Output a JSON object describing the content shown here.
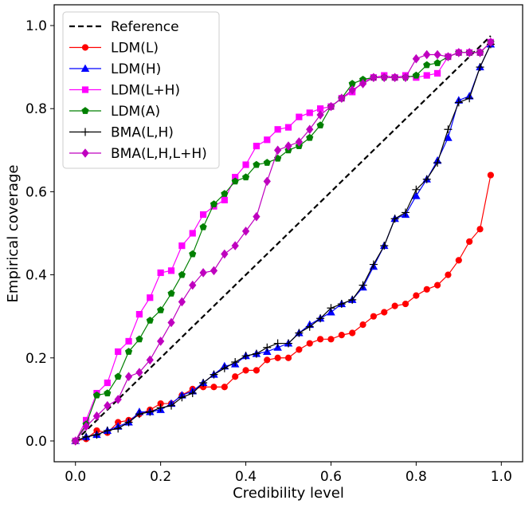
{
  "chart_data": {
    "type": "line",
    "xlabel": "Credibility level",
    "ylabel": "Empirical coverage",
    "xlim": [
      -0.05,
      1.05
    ],
    "ylim": [
      -0.05,
      1.05
    ],
    "xticks": [
      0.0,
      0.2,
      0.4,
      0.6,
      0.8,
      1.0
    ],
    "yticks": [
      0.0,
      0.2,
      0.4,
      0.6,
      0.8,
      1.0
    ],
    "xtick_labels": [
      "0.0",
      "0.2",
      "0.4",
      "0.6",
      "0.8",
      "1.0"
    ],
    "ytick_labels": [
      "0.0",
      "0.2",
      "0.4",
      "0.6",
      "0.8",
      "1.0"
    ],
    "grid": false,
    "legend_position": "upper-left",
    "reference": {
      "name": "Reference",
      "color": "#000000",
      "style": "dashed",
      "x": [
        0.0,
        0.975
      ],
      "y": [
        0.0,
        0.975
      ]
    },
    "x": [
      0.0,
      0.025,
      0.05,
      0.075,
      0.1,
      0.125,
      0.15,
      0.175,
      0.2,
      0.225,
      0.25,
      0.275,
      0.3,
      0.325,
      0.35,
      0.375,
      0.4,
      0.425,
      0.45,
      0.475,
      0.5,
      0.525,
      0.55,
      0.575,
      0.6,
      0.625,
      0.65,
      0.675,
      0.7,
      0.725,
      0.75,
      0.775,
      0.8,
      0.825,
      0.85,
      0.875,
      0.9,
      0.925,
      0.95,
      0.975
    ],
    "series": [
      {
        "name": "LDM(L)",
        "color": "#ff0000",
        "marker": "circle",
        "values": [
          0.0,
          0.005,
          0.025,
          0.02,
          0.045,
          0.05,
          0.065,
          0.075,
          0.09,
          0.09,
          0.11,
          0.125,
          0.13,
          0.13,
          0.13,
          0.155,
          0.17,
          0.17,
          0.195,
          0.2,
          0.2,
          0.22,
          0.235,
          0.245,
          0.245,
          0.255,
          0.26,
          0.28,
          0.3,
          0.31,
          0.325,
          0.33,
          0.35,
          0.365,
          0.375,
          0.4,
          0.435,
          0.48,
          0.51,
          0.64
        ]
      },
      {
        "name": "LDM(H)",
        "color": "#0000ff",
        "marker": "triangle",
        "values": [
          0.0,
          0.01,
          0.015,
          0.025,
          0.035,
          0.045,
          0.07,
          0.07,
          0.075,
          0.09,
          0.11,
          0.12,
          0.14,
          0.16,
          0.18,
          0.185,
          0.205,
          0.21,
          0.215,
          0.225,
          0.235,
          0.26,
          0.28,
          0.295,
          0.31,
          0.33,
          0.34,
          0.37,
          0.42,
          0.47,
          0.535,
          0.545,
          0.59,
          0.63,
          0.675,
          0.73,
          0.82,
          0.83,
          0.9,
          0.955
        ]
      },
      {
        "name": "LDM(L+H)",
        "color": "#ff00ff",
        "marker": "square",
        "values": [
          0.0,
          0.05,
          0.115,
          0.14,
          0.215,
          0.24,
          0.305,
          0.345,
          0.405,
          0.41,
          0.47,
          0.5,
          0.545,
          0.565,
          0.58,
          0.635,
          0.665,
          0.71,
          0.725,
          0.75,
          0.755,
          0.78,
          0.79,
          0.8,
          0.805,
          0.825,
          0.84,
          0.865,
          0.875,
          0.88,
          0.875,
          0.88,
          0.875,
          0.88,
          0.885,
          0.925,
          0.935,
          0.935,
          0.935,
          0.96
        ]
      },
      {
        "name": "LDM(A)",
        "color": "#008000",
        "marker": "pentagon",
        "values": [
          0.0,
          0.04,
          0.11,
          0.115,
          0.155,
          0.215,
          0.245,
          0.29,
          0.315,
          0.355,
          0.4,
          0.45,
          0.515,
          0.57,
          0.595,
          0.625,
          0.635,
          0.665,
          0.67,
          0.68,
          0.7,
          0.71,
          0.73,
          0.76,
          0.805,
          0.825,
          0.86,
          0.87,
          0.875,
          0.875,
          0.875,
          0.875,
          0.88,
          0.905,
          0.91,
          0.925,
          0.935,
          0.935,
          0.935,
          0.96
        ]
      },
      {
        "name": "BMA(L,H)",
        "color": "#000000",
        "marker": "plus",
        "values": [
          0.0,
          0.01,
          0.015,
          0.025,
          0.03,
          0.045,
          0.065,
          0.07,
          0.08,
          0.085,
          0.105,
          0.115,
          0.14,
          0.16,
          0.175,
          0.19,
          0.205,
          0.21,
          0.225,
          0.235,
          0.235,
          0.26,
          0.275,
          0.295,
          0.32,
          0.33,
          0.34,
          0.375,
          0.425,
          0.47,
          0.535,
          0.55,
          0.605,
          0.63,
          0.67,
          0.75,
          0.815,
          0.825,
          0.9,
          0.955
        ]
      },
      {
        "name": "BMA(L,H,L+H)",
        "color": "#bf00bf",
        "marker": "diamond",
        "values": [
          0.0,
          0.035,
          0.06,
          0.085,
          0.1,
          0.155,
          0.165,
          0.195,
          0.24,
          0.285,
          0.335,
          0.375,
          0.405,
          0.41,
          0.45,
          0.47,
          0.505,
          0.54,
          0.625,
          0.7,
          0.71,
          0.72,
          0.75,
          0.785,
          0.805,
          0.825,
          0.845,
          0.86,
          0.875,
          0.875,
          0.875,
          0.875,
          0.92,
          0.93,
          0.93,
          0.925,
          0.935,
          0.935,
          0.935,
          0.96
        ]
      }
    ]
  }
}
